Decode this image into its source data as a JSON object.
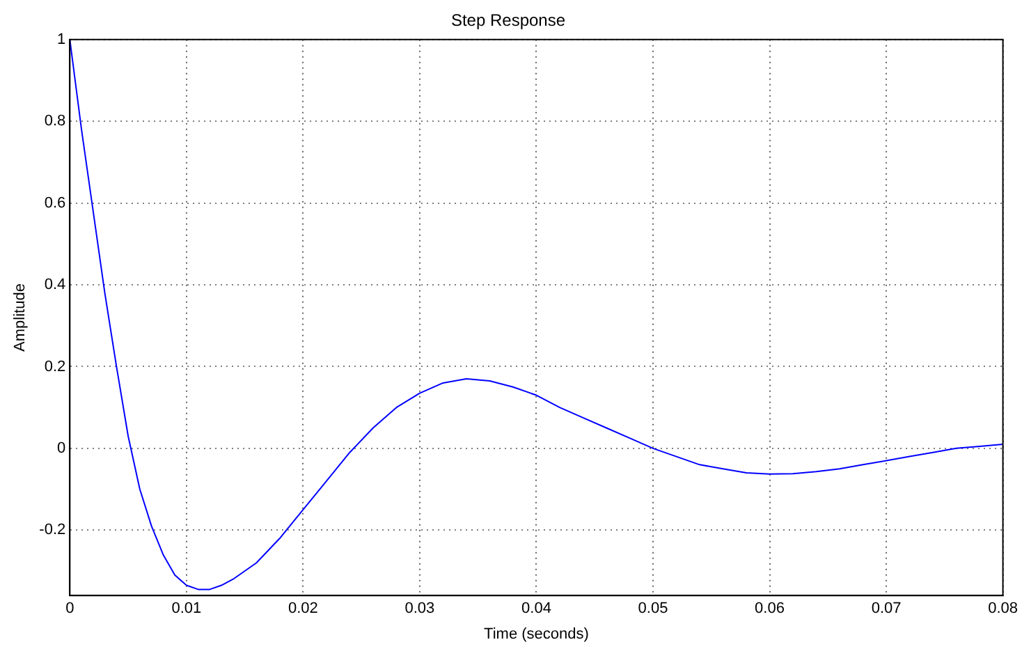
{
  "chart_data": {
    "type": "line",
    "title": "Step Response",
    "xlabel": "Time (seconds)",
    "ylabel": "Amplitude",
    "x": [
      0,
      0.001,
      0.002,
      0.003,
      0.004,
      0.005,
      0.006,
      0.007,
      0.008,
      0.009,
      0.01,
      0.011,
      0.012,
      0.013,
      0.014,
      0.016,
      0.018,
      0.02,
      0.022,
      0.024,
      0.026,
      0.028,
      0.03,
      0.032,
      0.034,
      0.036,
      0.038,
      0.04,
      0.042,
      0.044,
      0.046,
      0.048,
      0.05,
      0.052,
      0.054,
      0.056,
      0.058,
      0.06,
      0.062,
      0.064,
      0.066,
      0.068,
      0.07,
      0.072,
      0.074,
      0.076,
      0.078,
      0.08
    ],
    "series": [
      {
        "color": "#0000ff",
        "values": [
          1,
          0.78,
          0.58,
          0.38,
          0.2,
          0.03,
          -0.1,
          -0.19,
          -0.26,
          -0.31,
          -0.335,
          -0.345,
          -0.345,
          -0.335,
          -0.32,
          -0.28,
          -0.22,
          -0.15,
          -0.08,
          -0.01,
          0.05,
          0.1,
          0.135,
          0.16,
          0.17,
          0.165,
          0.15,
          0.13,
          0.1,
          0.075,
          0.05,
          0.025,
          0,
          -0.02,
          -0.04,
          -0.05,
          -0.06,
          -0.063,
          -0.062,
          -0.057,
          -0.05,
          -0.04,
          -0.03,
          -0.02,
          -0.01,
          0,
          0.005,
          0.01
        ]
      }
    ],
    "xlim": [
      0,
      0.08
    ],
    "xticks": [
      0,
      0.01,
      0.02,
      0.03,
      0.04,
      0.05,
      0.06,
      0.07,
      0.08
    ],
    "ylim": [
      -0.36,
      1
    ],
    "yticks": [
      -0.2,
      0,
      0.2,
      0.4,
      0.6,
      0.8,
      1
    ],
    "grid": true,
    "legend": false,
    "marker": "none",
    "line_style": "solid"
  }
}
